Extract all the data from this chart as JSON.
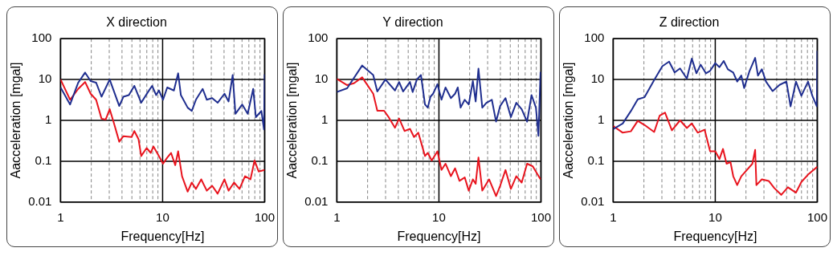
{
  "chart_data": [
    {
      "type": "line",
      "title": "X direction",
      "xlabel": "Frequency[Hz]",
      "ylabel": "Aacceleration [mgal]",
      "log": "xy",
      "grid": true,
      "xlim": [
        1,
        100
      ],
      "ylim": [
        0.01,
        100
      ],
      "xticks": [
        1,
        {
          "value": 2,
          "label": null
        },
        {
          "value": 3,
          "label": null
        },
        {
          "value": 4,
          "label": null
        },
        {
          "value": 5,
          "label": null
        },
        {
          "value": 6,
          "label": null
        },
        {
          "value": 7,
          "label": null
        },
        {
          "value": 8,
          "label": null
        },
        {
          "value": 9,
          "label": null
        },
        10,
        {
          "value": 20,
          "label": null
        },
        {
          "value": 30,
          "label": null
        },
        {
          "value": 40,
          "label": null
        },
        {
          "value": 50,
          "label": null
        },
        {
          "value": 60,
          "label": null
        },
        {
          "value": 70,
          "label": null
        },
        {
          "value": 80,
          "label": null
        },
        {
          "value": 90,
          "label": null
        },
        100
      ],
      "yticks": [
        0.01,
        0.1,
        1,
        10,
        100
      ],
      "series": [
        {
          "color": "#1f2e8f",
          "x": [
            1,
            1.24,
            1.49,
            1.74,
            1.97,
            2.23,
            2.52,
            3.03,
            3.76,
            4.13,
            4.67,
            5.28,
            6.17,
            7.19,
            7.89,
            8.65,
            9.2,
            10.1,
            11.1,
            12.9,
            14.2,
            15.1,
            17.6,
            19.3,
            21.2,
            24.7,
            27.1,
            30.6,
            34.6,
            40.4,
            44.3,
            48.6,
            51.7,
            60.3,
            68.2,
            77.2,
            82,
            92.9,
            98.5,
            100
          ],
          "values": [
            6.4,
            2.45,
            8.4,
            14.8,
            9.2,
            8.4,
            3.8,
            10,
            2.25,
            3.8,
            4.15,
            7.0,
            2.7,
            4.95,
            7.0,
            4.15,
            5.4,
            3.2,
            6.4,
            5.4,
            14.2,
            4.15,
            2.05,
            1.7,
            3.2,
            5.9,
            3.2,
            3.5,
            2.7,
            4.5,
            2.9,
            12.9,
            1.45,
            2.45,
            1.45,
            5.9,
            1.2,
            1.7,
            0.6,
            13.4
          ]
        },
        {
          "color": "#e8141e",
          "x": [
            1,
            1.24,
            1.49,
            1.74,
            1.97,
            2.23,
            2.52,
            2.77,
            3.03,
            3.33,
            3.76,
            4.13,
            4.97,
            5.28,
            5.8,
            6.17,
            6.97,
            7.65,
            8.13,
            9.2,
            10.1,
            11.1,
            12.1,
            13.3,
            14.2,
            15.5,
            17.6,
            19.3,
            21.2,
            23.9,
            27.1,
            30.6,
            34.6,
            40.4,
            44.3,
            50.1,
            56.7,
            64.2,
            72.6,
            79.6,
            87.3,
            100
          ],
          "values": [
            10,
            3.2,
            5.9,
            8.7,
            4.5,
            3.2,
            1.1,
            1.05,
            1.88,
            0.86,
            0.3,
            0.41,
            0.39,
            0.55,
            0.35,
            0.134,
            0.21,
            0.16,
            0.23,
            0.134,
            0.087,
            0.123,
            0.16,
            0.08,
            0.175,
            0.043,
            0.018,
            0.03,
            0.021,
            0.036,
            0.019,
            0.025,
            0.016,
            0.036,
            0.019,
            0.03,
            0.021,
            0.043,
            0.036,
            0.104,
            0.056,
            0.061
          ]
        }
      ]
    },
    {
      "type": "line",
      "title": "Y direction",
      "xlabel": "Frequency[Hz]",
      "ylabel": "Aacceleration [mgal]",
      "log": "xy",
      "grid": true,
      "xlim": [
        1,
        100
      ],
      "ylim": [
        0.01,
        100
      ],
      "xticks": [
        1,
        {
          "value": 2,
          "label": null
        },
        {
          "value": 3,
          "label": null
        },
        {
          "value": 4,
          "label": null
        },
        {
          "value": 5,
          "label": null
        },
        {
          "value": 6,
          "label": null
        },
        {
          "value": 7,
          "label": null
        },
        {
          "value": 8,
          "label": null
        },
        {
          "value": 9,
          "label": null
        },
        10,
        {
          "value": 20,
          "label": null
        },
        {
          "value": 30,
          "label": null
        },
        {
          "value": 40,
          "label": null
        },
        {
          "value": 50,
          "label": null
        },
        {
          "value": 60,
          "label": null
        },
        {
          "value": 70,
          "label": null
        },
        {
          "value": 80,
          "label": null
        },
        {
          "value": 90,
          "label": null
        },
        100
      ],
      "yticks": [
        0.01,
        0.1,
        1,
        10,
        100
      ],
      "series": [
        {
          "color": "#1f2e8f",
          "x": [
            1,
            1.26,
            1.77,
            2.27,
            2.49,
            2.99,
            3.71,
            4.07,
            4.46,
            5.2,
            5.53,
            6.08,
            6.66,
            7.3,
            7.78,
            8.26,
            8.77,
            9.67,
            10.6,
            11.6,
            13.1,
            14.4,
            15.3,
            16.3,
            17.9,
            19.6,
            21.5,
            22.9,
            24.4,
            26.6,
            29.2,
            33,
            36.3,
            39.8,
            44.9,
            50.7,
            57.3,
            64.7,
            73.1,
            80.8,
            89.2,
            94.4,
            99
          ],
          "values": [
            4.95,
            6.1,
            22,
            12.9,
            5.1,
            10,
            5.4,
            8.7,
            5.1,
            8.7,
            4.95,
            10,
            12.9,
            2.45,
            2.05,
            3.8,
            4.5,
            7.7,
            3.2,
            6.4,
            3.5,
            4.5,
            6.4,
            2.05,
            3.2,
            2.45,
            9.2,
            2.9,
            18.5,
            2.05,
            2.7,
            3.2,
            0.93,
            2.25,
            3.5,
            1.2,
            2.7,
            1.88,
            0.93,
            4.15,
            2.05,
            0.42,
            15.5
          ]
        },
        {
          "color": "#e8141e",
          "x": [
            1,
            1.26,
            1.47,
            1.77,
            2.27,
            2.49,
            2.9,
            3.18,
            3.71,
            4.07,
            4.6,
            5.2,
            5.7,
            6.27,
            6.66,
            7.3,
            7.78,
            8.5,
            9.67,
            10.6,
            11.6,
            13.1,
            14.4,
            15.9,
            17.9,
            19.6,
            21.5,
            22.9,
            24.4,
            26.6,
            31.0,
            36.3,
            39.8,
            44.9,
            50.7,
            57.3,
            64.7,
            73.1,
            83,
            99
          ],
          "values": [
            10.4,
            7.3,
            8.1,
            11.3,
            4.5,
            1.72,
            1.72,
            1.25,
            0.66,
            1.11,
            0.55,
            0.62,
            0.39,
            0.5,
            0.3,
            0.134,
            0.16,
            0.104,
            0.175,
            0.061,
            0.087,
            0.043,
            0.067,
            0.033,
            0.04,
            0.019,
            0.036,
            0.028,
            0.123,
            0.019,
            0.036,
            0.014,
            0.025,
            0.061,
            0.021,
            0.043,
            0.03,
            0.087,
            0.075,
            0.036
          ]
        }
      ]
    },
    {
      "type": "line",
      "title": "Z direction",
      "xlabel": "Frequency[Hz]",
      "ylabel": "Aacceleration [mgal]",
      "log": "xy",
      "grid": true,
      "xlim": [
        1,
        100
      ],
      "ylim": [
        0.01,
        100
      ],
      "xticks": [
        1,
        {
          "value": 2,
          "label": null
        },
        {
          "value": 3,
          "label": null
        },
        {
          "value": 4,
          "label": null
        },
        {
          "value": 5,
          "label": null
        },
        {
          "value": 6,
          "label": null
        },
        {
          "value": 7,
          "label": null
        },
        {
          "value": 8,
          "label": null
        },
        {
          "value": 9,
          "label": null
        },
        10,
        {
          "value": 20,
          "label": null
        },
        {
          "value": 30,
          "label": null
        },
        {
          "value": 40,
          "label": null
        },
        {
          "value": 50,
          "label": null
        },
        {
          "value": 60,
          "label": null
        },
        {
          "value": 70,
          "label": null
        },
        {
          "value": 80,
          "label": null
        },
        {
          "value": 90,
          "label": null
        },
        100
      ],
      "yticks": [
        0.01,
        0.1,
        1,
        10,
        100
      ],
      "series": [
        {
          "color": "#1f2e8f",
          "x": [
            1,
            1.24,
            1.49,
            1.74,
            2.03,
            2.52,
            3.03,
            3.53,
            4.0,
            4.52,
            5.27,
            5.89,
            6.54,
            7.18,
            8.1,
            8.9,
            10.0,
            11.0,
            12.1,
            13.3,
            15.0,
            16.4,
            18.0,
            19.2,
            21.7,
            24.6,
            26.2,
            28.6,
            31.4,
            36.5,
            42.7,
            49.8,
            54.7,
            61.8,
            69.8,
            81.2,
            89.4,
            99,
            100
          ],
          "values": [
            0.61,
            0.84,
            1.69,
            3.27,
            3.7,
            9.7,
            21.2,
            27.5,
            14.9,
            18.7,
            10.5,
            32.7,
            14.2,
            23.1,
            14.2,
            16.3,
            25.2,
            20.1,
            28.5,
            17.8,
            14.9,
            8.9,
            12.5,
            6.2,
            16.3,
            33.9,
            12.5,
            17.8,
            8.9,
            5.2,
            7.4,
            8.9,
            2.2,
            8.9,
            4.0,
            8.9,
            4.0,
            2.2,
            50.7
          ]
        },
        {
          "color": "#e8141e",
          "x": [
            1,
            1.24,
            1.49,
            1.74,
            2.03,
            2.52,
            2.85,
            3.22,
            3.76,
            4.52,
            5.27,
            5.89,
            6.73,
            7.87,
            8.9,
            10.0,
            11.0,
            11.9,
            12.9,
            14.1,
            15.0,
            16.4,
            18.0,
            20.4,
            23.1,
            24.6,
            25.3,
            28.6,
            33.4,
            37.9,
            44.3,
            51.5,
            61.8,
            69.8,
            81.2,
            100
          ],
          "values": [
            0.73,
            0.5,
            0.54,
            0.97,
            0.77,
            0.52,
            1.3,
            1.55,
            0.57,
            1.0,
            0.65,
            0.84,
            0.5,
            0.59,
            0.175,
            0.175,
            0.113,
            0.2,
            0.087,
            0.095,
            0.043,
            0.026,
            0.043,
            0.061,
            0.087,
            0.19,
            0.026,
            0.036,
            0.033,
            0.022,
            0.015,
            0.023,
            0.017,
            0.031,
            0.047,
            0.073
          ]
        }
      ]
    }
  ]
}
